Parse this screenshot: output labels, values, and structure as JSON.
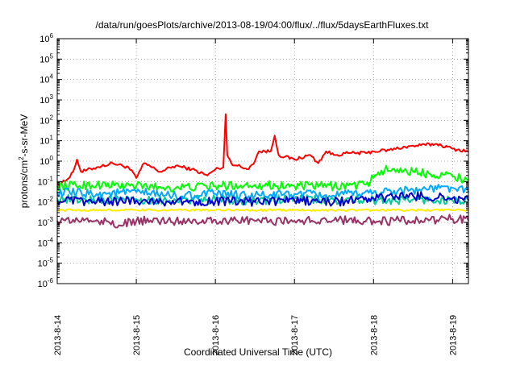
{
  "chart_data": {
    "type": "line",
    "title": "/data/run/goesPlots/archive/2013-08-19/04:00/flux/../flux/5daysEarthFluxes.txt",
    "xlabel": "Coordinated Universal Time (UTC)",
    "ylabel": {
      "prefix": "protons/cm",
      "superscript": "2",
      "suffix": "-s-sr-MeV"
    },
    "y_scale": "log",
    "ylim": [
      1e-06,
      1000000.0
    ],
    "y_ticks": [
      {
        "value": 1e-06,
        "base": "10",
        "exp": "-6"
      },
      {
        "value": 1e-05,
        "base": "10",
        "exp": "-5"
      },
      {
        "value": 0.0001,
        "base": "10",
        "exp": "-4"
      },
      {
        "value": 0.001,
        "base": "10",
        "exp": "-3"
      },
      {
        "value": 0.01,
        "base": "10",
        "exp": "-2"
      },
      {
        "value": 0.1,
        "base": "10",
        "exp": "-1"
      },
      {
        "value": 1,
        "base": "10",
        "exp": "0"
      },
      {
        "value": 10,
        "base": "10",
        "exp": "1"
      },
      {
        "value": 100,
        "base": "10",
        "exp": "2"
      },
      {
        "value": 1000,
        "base": "10",
        "exp": "3"
      },
      {
        "value": 10000,
        "base": "10",
        "exp": "4"
      },
      {
        "value": 100000,
        "base": "10",
        "exp": "5"
      },
      {
        "value": 1000000,
        "base": "10",
        "exp": "6"
      }
    ],
    "x_unit": "days",
    "xlim": [
      0,
      5.2
    ],
    "x_ticks": [
      {
        "value": 0,
        "label": "2013-8-14"
      },
      {
        "value": 1,
        "label": "2013-8-15"
      },
      {
        "value": 2,
        "label": "2013-8-16"
      },
      {
        "value": 3,
        "label": "2013-8-17"
      },
      {
        "value": 4,
        "label": "2013-8-18"
      },
      {
        "value": 5,
        "label": "2013-8-19"
      }
    ],
    "grid": true,
    "series": [
      {
        "color": "#ff0000",
        "x": [
          0,
          0.1,
          0.2,
          0.25,
          0.3,
          0.5,
          0.7,
          0.9,
          1.0,
          1.1,
          1.3,
          1.5,
          1.7,
          1.9,
          2.0,
          2.1,
          2.13,
          2.15,
          2.2,
          2.4,
          2.5,
          2.55,
          2.7,
          2.75,
          2.8,
          3.0,
          3.2,
          3.3,
          3.4,
          3.5,
          3.7,
          3.9,
          4.0,
          4.2,
          4.4,
          4.6,
          4.8,
          5.0,
          5.2
        ],
        "y": [
          0.08,
          0.1,
          0.3,
          1.2,
          0.3,
          0.5,
          0.8,
          0.5,
          0.15,
          0.8,
          0.3,
          0.6,
          0.4,
          0.2,
          0.4,
          0.5,
          200,
          2,
          0.8,
          0.4,
          1,
          3,
          3,
          18,
          2,
          1.2,
          2,
          0.8,
          3,
          2,
          2.5,
          2.5,
          3,
          3.5,
          5,
          6,
          7,
          4,
          3
        ]
      },
      {
        "color": "#00ff00",
        "x": [
          0,
          0.5,
          1.0,
          1.5,
          2.0,
          2.5,
          3.0,
          3.5,
          3.9,
          4.0,
          4.1,
          4.3,
          4.5,
          4.7,
          4.9,
          5.1,
          5.2
        ],
        "y": [
          0.06,
          0.07,
          0.06,
          0.05,
          0.06,
          0.07,
          0.06,
          0.06,
          0.07,
          0.15,
          0.35,
          0.4,
          0.3,
          0.25,
          0.22,
          0.15,
          0.12
        ]
      },
      {
        "color": "#00cc99",
        "x": [
          0,
          0.5,
          1.0,
          1.5,
          2.0,
          2.5,
          3.0,
          3.5,
          4.0,
          4.5,
          5.0,
          5.2
        ],
        "y": [
          0.015,
          0.012,
          0.014,
          0.012,
          0.013,
          0.012,
          0.014,
          0.012,
          0.012,
          0.013,
          0.012,
          0.011
        ]
      },
      {
        "color": "#00aaff",
        "x": [
          0,
          0.5,
          1.0,
          1.5,
          2.0,
          2.5,
          3.0,
          3.5,
          4.0,
          4.5,
          5.0,
          5.2
        ],
        "y": [
          0.03,
          0.025,
          0.03,
          0.02,
          0.025,
          0.02,
          0.025,
          0.02,
          0.03,
          0.04,
          0.05,
          0.03
        ]
      },
      {
        "color": "#0000cc",
        "x": [
          0,
          0.5,
          1.0,
          1.5,
          2.0,
          2.5,
          3.0,
          3.5,
          4.0,
          4.5,
          5.0,
          5.2
        ],
        "y": [
          0.012,
          0.01,
          0.012,
          0.01,
          0.011,
          0.01,
          0.012,
          0.01,
          0.015,
          0.02,
          0.015,
          0.012
        ]
      },
      {
        "color": "#ffee00",
        "x": [
          0,
          1,
          2,
          3,
          4,
          5,
          5.2
        ],
        "y": [
          0.004,
          0.004,
          0.004,
          0.004,
          0.004,
          0.004,
          0.004
        ]
      },
      {
        "color": "#993366",
        "x": [
          0,
          0.5,
          0.8,
          1.0,
          1.5,
          2.0,
          2.5,
          3.0,
          3.5,
          4.0,
          4.5,
          5.0,
          5.2
        ],
        "y": [
          0.0012,
          0.0013,
          0.0007,
          0.0012,
          0.0012,
          0.0013,
          0.0012,
          0.0012,
          0.0013,
          0.0012,
          0.0012,
          0.0015,
          0.0012
        ]
      }
    ]
  }
}
